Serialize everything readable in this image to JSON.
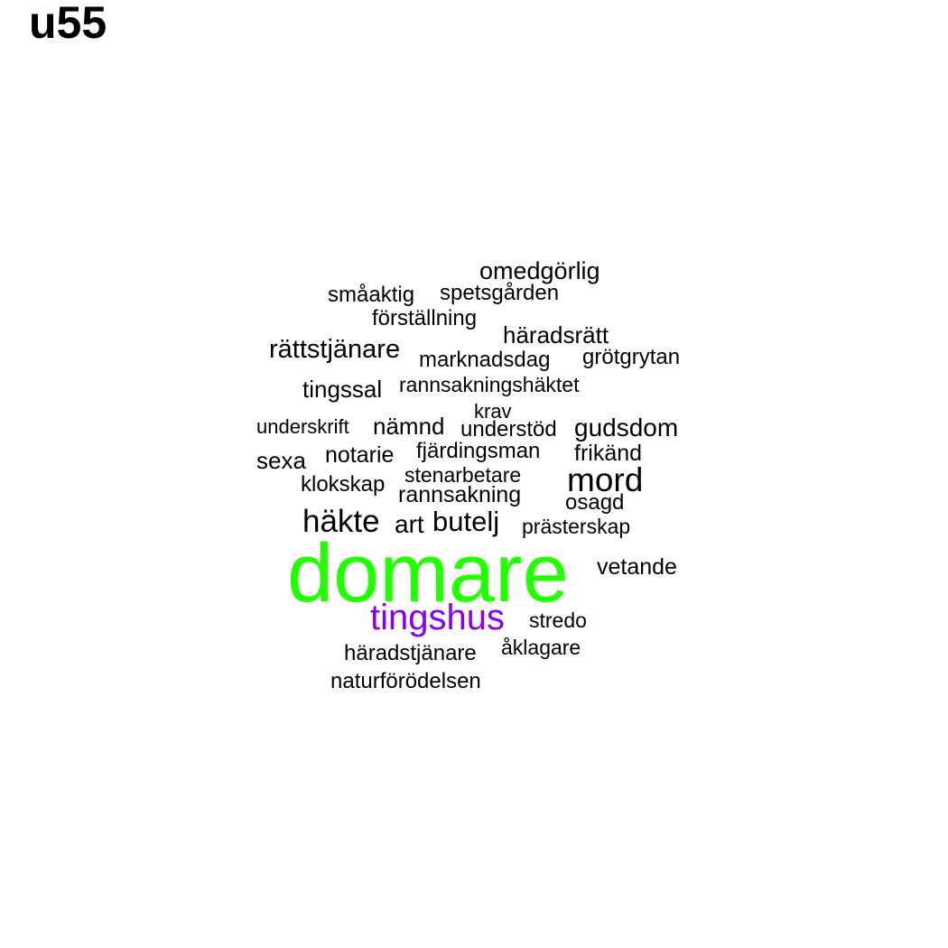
{
  "title": "u55",
  "colors": {
    "highlight_primary": "#22ff00",
    "highlight_secondary": "#8800ee",
    "default": "#000000"
  },
  "words": [
    {
      "text": "omedgörlig"
    },
    {
      "text": "småaktig"
    },
    {
      "text": "spetsgården"
    },
    {
      "text": "förställning"
    },
    {
      "text": "häradsrätt"
    },
    {
      "text": "rättstjänare"
    },
    {
      "text": "marknadsdag"
    },
    {
      "text": "grötgrytan"
    },
    {
      "text": "tingssal"
    },
    {
      "text": "rannsakningshäktet"
    },
    {
      "text": "krav"
    },
    {
      "text": "underskrift"
    },
    {
      "text": "nämnd"
    },
    {
      "text": "understöd"
    },
    {
      "text": "gudsdom"
    },
    {
      "text": "sexa"
    },
    {
      "text": "notarie"
    },
    {
      "text": "fjärdingsman"
    },
    {
      "text": "frikänd"
    },
    {
      "text": "stenarbetare"
    },
    {
      "text": "mord"
    },
    {
      "text": "klokskap"
    },
    {
      "text": "rannsakning"
    },
    {
      "text": "osagd"
    },
    {
      "text": "häkte"
    },
    {
      "text": "art"
    },
    {
      "text": "butelj"
    },
    {
      "text": "prästerskap"
    },
    {
      "text": "domare"
    },
    {
      "text": "vetande"
    },
    {
      "text": "tingshus"
    },
    {
      "text": "stredo"
    },
    {
      "text": "häradstjänare"
    },
    {
      "text": "åklagare"
    },
    {
      "text": "naturförödelsen"
    }
  ]
}
